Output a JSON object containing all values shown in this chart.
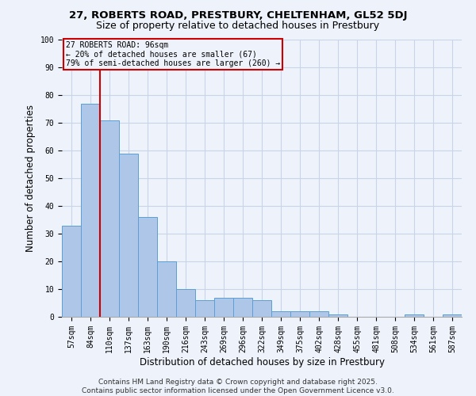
{
  "title_line1": "27, ROBERTS ROAD, PRESTBURY, CHELTENHAM, GL52 5DJ",
  "title_line2": "Size of property relative to detached houses in Prestbury",
  "xlabel": "Distribution of detached houses by size in Prestbury",
  "ylabel": "Number of detached properties",
  "categories": [
    "57sqm",
    "84sqm",
    "110sqm",
    "137sqm",
    "163sqm",
    "190sqm",
    "216sqm",
    "243sqm",
    "269sqm",
    "296sqm",
    "322sqm",
    "349sqm",
    "375sqm",
    "402sqm",
    "428sqm",
    "455sqm",
    "481sqm",
    "508sqm",
    "534sqm",
    "561sqm",
    "587sqm"
  ],
  "values": [
    33,
    77,
    71,
    59,
    36,
    20,
    10,
    6,
    7,
    7,
    6,
    2,
    2,
    2,
    1,
    0,
    0,
    0,
    1,
    0,
    1
  ],
  "bar_color": "#aec6e8",
  "bar_edge_color": "#5a9fd4",
  "marker_line_color": "#cc0000",
  "annotation_line1": "27 ROBERTS ROAD: 96sqm",
  "annotation_line2": "← 20% of detached houses are smaller (67)",
  "annotation_line3": "79% of semi-detached houses are larger (260) →",
  "annotation_box_color": "#cc0000",
  "ylim": [
    0,
    100
  ],
  "yticks": [
    0,
    10,
    20,
    30,
    40,
    50,
    60,
    70,
    80,
    90,
    100
  ],
  "footer_line1": "Contains HM Land Registry data © Crown copyright and database right 2025.",
  "footer_line2": "Contains public sector information licensed under the Open Government Licence v3.0.",
  "background_color": "#eef2fb",
  "grid_color": "#c8d4e8",
  "title_fontsize": 9.5,
  "subtitle_fontsize": 9,
  "axis_label_fontsize": 8.5,
  "tick_fontsize": 7,
  "footer_fontsize": 6.5,
  "annotation_fontsize": 7
}
